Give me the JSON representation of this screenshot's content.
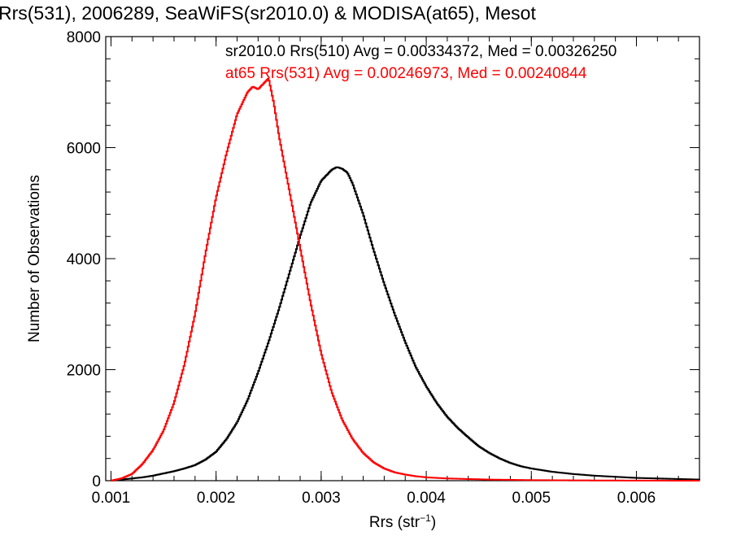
{
  "chart_data": {
    "type": "line",
    "title": "Rrs(531), 2006289, SeaWiFS(sr2010.0) & MODISA(at65), Mesot",
    "xlabel": "Rrs (str",
    "xlabel_sup": "−1",
    "xlabel_end": ")",
    "ylabel": "Number of Observations",
    "xlim": [
      0.00095,
      0.0066
    ],
    "ylim": [
      0,
      8000
    ],
    "x_ticks": [
      0.001,
      0.002,
      0.003,
      0.004,
      0.005,
      0.006
    ],
    "x_tick_labels": [
      "0.001",
      "0.002",
      "0.003",
      "0.004",
      "0.005",
      "0.006"
    ],
    "y_ticks": [
      0,
      2000,
      4000,
      6000,
      8000
    ],
    "y_tick_labels": [
      "0",
      "2000",
      "4000",
      "6000",
      "8000"
    ],
    "grid": false,
    "annotations": [
      {
        "text": "sr2010.0 Rrs(510) Avg = 0.00334372, Med = 0.00326250",
        "color": "#000000"
      },
      {
        "text": "at65 Rrs(531) Avg = 0.00246973, Med = 0.00240844",
        "color": "#ff0000"
      }
    ],
    "series": [
      {
        "color": "#000000",
        "x": [
          0.001,
          0.0011,
          0.0012,
          0.0013,
          0.0014,
          0.0015,
          0.0016,
          0.0017,
          0.0018,
          0.0019,
          0.002,
          0.0021,
          0.0022,
          0.0023,
          0.0024,
          0.0025,
          0.0026,
          0.0027,
          0.0028,
          0.0029,
          0.003,
          0.0031,
          0.00315,
          0.0032,
          0.00325,
          0.0033,
          0.0034,
          0.0035,
          0.0036,
          0.0037,
          0.0038,
          0.0039,
          0.004,
          0.0041,
          0.0042,
          0.0043,
          0.0044,
          0.0045,
          0.0046,
          0.0047,
          0.0048,
          0.0049,
          0.005,
          0.0052,
          0.0054,
          0.0056,
          0.0058,
          0.006,
          0.0062,
          0.0064,
          0.0066
        ],
        "values": [
          0,
          20,
          40,
          60,
          90,
          130,
          170,
          220,
          280,
          380,
          520,
          750,
          1050,
          1450,
          1950,
          2500,
          3100,
          3750,
          4400,
          5000,
          5400,
          5600,
          5650,
          5620,
          5550,
          5350,
          4800,
          4150,
          3550,
          3000,
          2500,
          2050,
          1700,
          1400,
          1150,
          950,
          780,
          620,
          500,
          400,
          320,
          260,
          220,
          160,
          120,
          90,
          70,
          50,
          40,
          30,
          20
        ]
      },
      {
        "color": "#ff0000",
        "x": [
          0.001,
          0.0011,
          0.0012,
          0.0013,
          0.0014,
          0.0015,
          0.0016,
          0.0017,
          0.0018,
          0.0019,
          0.002,
          0.0021,
          0.0022,
          0.0023,
          0.00235,
          0.0024,
          0.00245,
          0.0025,
          0.00255,
          0.0026,
          0.0027,
          0.0028,
          0.0029,
          0.003,
          0.0031,
          0.0032,
          0.0033,
          0.0034,
          0.0035,
          0.0036,
          0.0037,
          0.0038,
          0.0039,
          0.004,
          0.0042,
          0.0044,
          0.0046,
          0.0048,
          0.005,
          0.0055,
          0.006,
          0.0066
        ],
        "values": [
          0,
          40,
          120,
          300,
          550,
          900,
          1400,
          2100,
          3000,
          4100,
          5100,
          5900,
          6600,
          7000,
          7100,
          7050,
          7150,
          7250,
          6800,
          6200,
          5200,
          4200,
          3200,
          2300,
          1600,
          1100,
          750,
          500,
          330,
          220,
          150,
          110,
          80,
          60,
          40,
          30,
          20,
          15,
          10,
          5,
          2,
          0
        ]
      }
    ]
  }
}
